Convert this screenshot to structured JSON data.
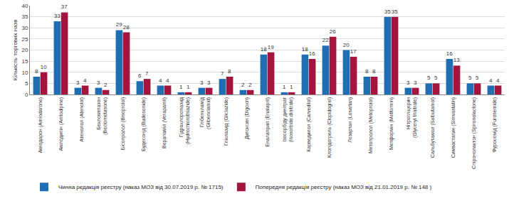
{
  "chart_data": {
    "type": "bar",
    "y_label": "Кількість торгових назв",
    "categories": [
      "Аміодарон (Amiodarone)",
      "Амлодипін (Amlodipine)",
      "Атенолол (Atenolol)",
      "Беклометазон\n(Beclometasone)",
      "Бісопролол (Bisoprolol)",
      "Будесонід (Budesonide)",
      "Верапаміл (Verapamil)",
      "Гідрохлоротіазид\n(Hydrochlorothiazide)",
      "Глібенкламід\n(Glibenclamid)",
      "Гліклазид (Gliclazide)",
      "Дигоксин (Digoxin)",
      "Еналаприл (Enalapril)",
      "Ізосорбіду динітрат\n(Isosorbide dinitrate)",
      "Карведилол (Carvedilol)",
      "Клопідогрель (Clopidogrel)",
      "Лозартан (Losartan)",
      "Метопролол (Metoprolol)",
      "Метформін (Metformin)",
      "Нітрогліцерин\n(Glyceryl trinitrate)",
      "Сальбутамол (Salbutamol)",
      "Симвастатин (Simvastatin)",
      "Спіронолактон (Spironolactone)",
      "Фуросемід (Furosemide)"
    ],
    "series": [
      {
        "name": "Чинна редакція реєстру (наказ МОЗ від 30.07.2019 р. № 1715)",
        "color": "#1f6db3",
        "values": [
          8,
          33,
          3,
          3,
          29,
          6,
          4,
          1,
          3,
          7,
          2,
          18,
          1,
          18,
          22,
          20,
          8,
          35,
          3,
          5,
          16,
          5,
          4
        ]
      },
      {
        "name": "Попередня редакція реєстру (наказ МОЗ від 21.01.2019 р. № 148 )",
        "color": "#a3153c",
        "values": [
          10,
          37,
          4,
          2,
          28,
          7,
          4,
          1,
          3,
          8,
          2,
          19,
          1,
          16,
          26,
          17,
          8,
          35,
          3,
          5,
          13,
          5,
          4
        ]
      }
    ],
    "ylim": [
      0,
      40
    ],
    "yticks": [
      0,
      5,
      10,
      15,
      20,
      25,
      30,
      35,
      40
    ],
    "grid": true,
    "data_labels": true,
    "legend": "bottom"
  }
}
